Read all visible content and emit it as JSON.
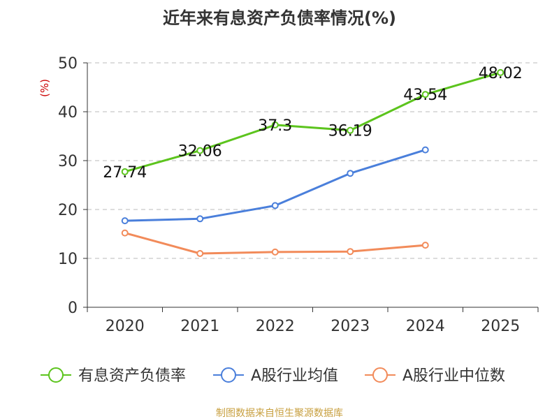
{
  "chart_data": {
    "type": "line",
    "title": "近年来有息资产负债率情况(%)",
    "ylabel": "(%)",
    "xlabel": "",
    "categories": [
      "2020",
      "2021",
      "2022",
      "2023",
      "2024",
      "2025"
    ],
    "ylim": [
      0,
      50
    ],
    "yticks": [
      0,
      10,
      20,
      30,
      40,
      50
    ],
    "grid": true,
    "legend_position": "bottom",
    "series": [
      {
        "name": "有息资产负债率",
        "color": "#5cc41d",
        "values": [
          27.74,
          32.06,
          37.3,
          36.19,
          43.54,
          48.02
        ],
        "labels": [
          "27.74",
          "32.06",
          "37.3",
          "36.19",
          "43.54",
          "48.02"
        ]
      },
      {
        "name": "A股行业均值",
        "color": "#4a7fdb",
        "values": [
          17.7,
          18.1,
          20.8,
          27.4,
          32.2,
          null
        ]
      },
      {
        "name": "A股行业中位数",
        "color": "#f28b5a",
        "values": [
          15.2,
          11.0,
          11.3,
          11.4,
          12.7,
          null
        ]
      }
    ],
    "source": "制图数据来自恒生聚源数据库"
  }
}
